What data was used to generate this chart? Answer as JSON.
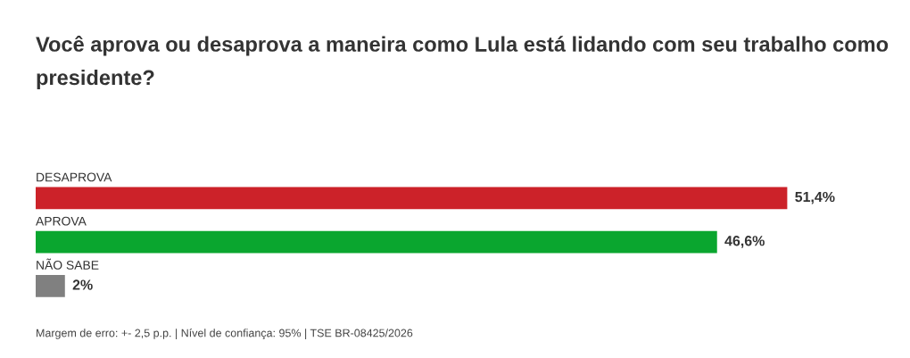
{
  "chart_data": {
    "type": "bar",
    "orientation": "horizontal",
    "title": "Você aprova ou desaprova a maneira como Lula está lidando com seu trabalho como presidente?",
    "categories": [
      "DESAPROVA",
      "APROVA",
      "NÃO SABE"
    ],
    "values": [
      51.4,
      46.6,
      2
    ],
    "colors": [
      "#cc2229",
      "#0aa62f",
      "#808080"
    ],
    "value_labels": [
      "51,4%",
      "46,6%",
      "2%"
    ],
    "annotations": [
      "Margem de erro: +- 2,5 p.p. | Nível de confiança: 95% | TSE BR-08425/2026"
    ]
  }
}
